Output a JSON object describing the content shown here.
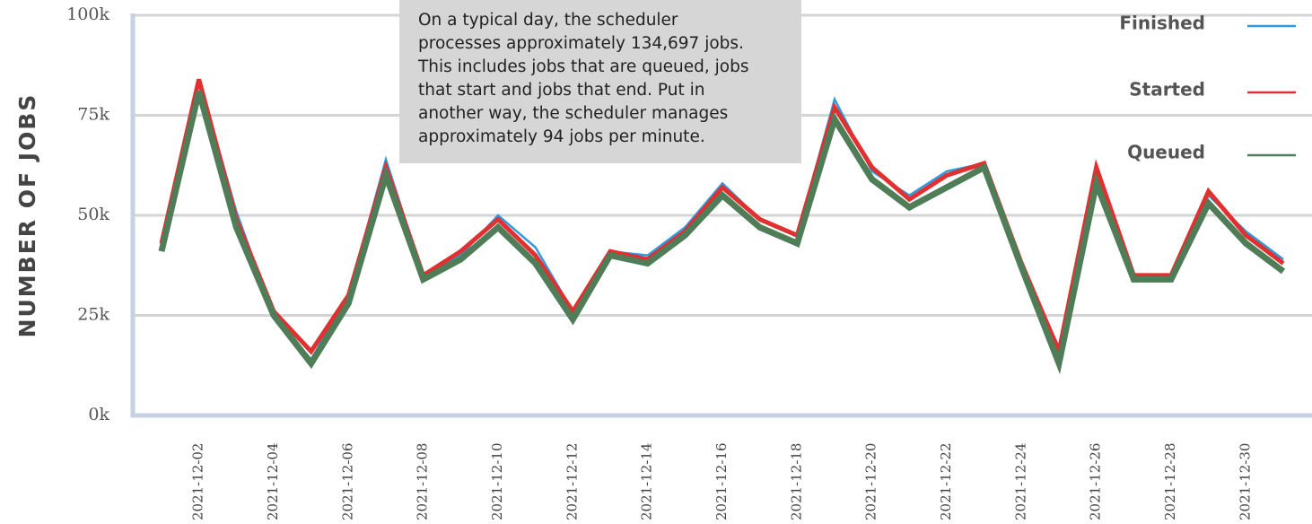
{
  "chart_data": {
    "type": "line",
    "y_label": "NUMBER OF JOBS",
    "annotation": [
      "On a typical day, the scheduler",
      "processes approximately 134,697 jobs.",
      "This includes jobs that are queued, jobs",
      "that start and jobs that end. Put in",
      "another way, the scheduler manages",
      "approximately 94 jobs per minute."
    ],
    "categories": [
      null,
      "2021-12-02",
      null,
      "2021-12-04",
      null,
      "2021-12-06",
      null,
      "2021-12-08",
      null,
      "2021-12-10",
      null,
      "2021-12-12",
      null,
      "2021-12-14",
      null,
      "2021-12-16",
      null,
      "2021-12-18",
      null,
      "2021-12-20",
      null,
      "2021-12-22",
      null,
      "2021-12-24",
      null,
      "2021-12-26",
      null,
      "2021-12-28",
      null,
      "2021-12-30",
      null
    ],
    "series": [
      {
        "name": "Finished",
        "color": "#2e9be0",
        "values": [
          43000,
          84000,
          51000,
          25000,
          14000,
          30000,
          64000,
          35000,
          40000,
          50000,
          42000,
          26000,
          41000,
          40000,
          47000,
          58000,
          49000,
          45000,
          79000,
          61000,
          55000,
          61000,
          63000,
          38000,
          17000,
          61000,
          35000,
          35000,
          55000,
          46000,
          39000
        ]
      },
      {
        "name": "Started",
        "color": "#e03030",
        "values": [
          43000,
          84000,
          49000,
          26000,
          16000,
          30000,
          62000,
          35000,
          41000,
          49000,
          40000,
          26000,
          41000,
          39000,
          46000,
          57000,
          49000,
          45000,
          77000,
          62000,
          54000,
          60000,
          63000,
          38000,
          16000,
          62000,
          35000,
          35000,
          56000,
          45000,
          38000
        ]
      },
      {
        "name": "Queued",
        "color": "#4e7d57",
        "values": [
          41000,
          81000,
          47000,
          25000,
          13000,
          28000,
          60000,
          34000,
          39000,
          47000,
          38000,
          24000,
          40000,
          38000,
          45000,
          55000,
          47000,
          43000,
          74000,
          59000,
          52000,
          57000,
          62000,
          37000,
          13000,
          58000,
          34000,
          34000,
          53000,
          43000,
          36000
        ]
      }
    ],
    "ylim": [
      0,
      100000
    ],
    "yticks": [
      {
        "value": 0,
        "label": "0k"
      },
      {
        "value": 25000,
        "label": "25k"
      },
      {
        "value": 50000,
        "label": "50k"
      },
      {
        "value": 75000,
        "label": "75k"
      },
      {
        "value": 100000,
        "label": "100k"
      }
    ],
    "grid": true,
    "legend": "top-right"
  }
}
